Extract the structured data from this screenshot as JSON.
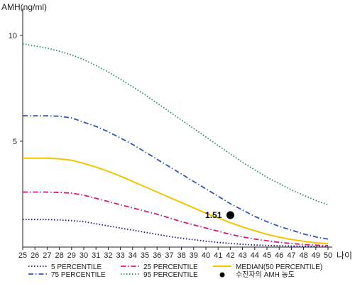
{
  "chart_data": {
    "type": "line",
    "ylabel": "AMH(ng/ml)",
    "xlabel": "나이",
    "x": [
      25,
      26,
      27,
      28,
      29,
      30,
      31,
      32,
      33,
      34,
      35,
      36,
      37,
      38,
      39,
      40,
      41,
      42,
      43,
      44,
      45,
      46,
      47,
      48,
      49,
      50
    ],
    "x_tick_labels": [
      "25",
      "26",
      "27",
      "28",
      "29",
      "30",
      "31",
      "32",
      "33",
      "34",
      "35",
      "36",
      "37",
      "38",
      "39",
      "40",
      "41",
      "42",
      "43",
      "44",
      "45",
      "46",
      "47",
      "48",
      "49",
      "50"
    ],
    "y_ticks": [
      5,
      10
    ],
    "ylim": [
      0,
      11
    ],
    "xlim": [
      25,
      50
    ],
    "grid": false,
    "legend_position": "bottom",
    "series": [
      {
        "name": "5 PERCENTILE",
        "color": "#1a1a6e",
        "style": "dotted",
        "values": [
          1.3,
          1.3,
          1.3,
          1.28,
          1.25,
          1.2,
          1.1,
          1.0,
          0.9,
          0.8,
          0.7,
          0.6,
          0.5,
          0.42,
          0.35,
          0.28,
          0.22,
          0.17,
          0.13,
          0.1,
          0.08,
          0.06,
          0.05,
          0.04,
          0.03,
          0.03
        ]
      },
      {
        "name": "25 PERCENTILE",
        "color": "#e0147c",
        "style": "dashdot",
        "values": [
          2.6,
          2.6,
          2.6,
          2.58,
          2.55,
          2.45,
          2.3,
          2.15,
          2.0,
          1.85,
          1.7,
          1.55,
          1.38,
          1.2,
          1.05,
          0.9,
          0.75,
          0.6,
          0.48,
          0.38,
          0.3,
          0.22,
          0.17,
          0.12,
          0.09,
          0.07
        ]
      },
      {
        "name": "MEDIAN(50 PERCENTILE)",
        "color": "#f2c500",
        "style": "solid",
        "values": [
          4.2,
          4.2,
          4.2,
          4.17,
          4.1,
          3.95,
          3.78,
          3.58,
          3.35,
          3.1,
          2.85,
          2.6,
          2.35,
          2.1,
          1.85,
          1.6,
          1.38,
          1.15,
          0.95,
          0.77,
          0.6,
          0.47,
          0.36,
          0.27,
          0.2,
          0.16
        ]
      },
      {
        "name": "75 PERCENTILE",
        "color": "#3355bb",
        "style": "dashdot",
        "values": [
          6.2,
          6.2,
          6.2,
          6.18,
          6.1,
          5.9,
          5.7,
          5.45,
          5.15,
          4.85,
          4.5,
          4.15,
          3.8,
          3.45,
          3.1,
          2.75,
          2.4,
          2.05,
          1.75,
          1.45,
          1.2,
          0.98,
          0.8,
          0.62,
          0.48,
          0.38
        ]
      },
      {
        "name": "95 PERCENTILE",
        "color": "#2e8b57",
        "style": "dotted",
        "values": [
          9.6,
          9.5,
          9.4,
          9.25,
          9.08,
          8.85,
          8.58,
          8.27,
          7.93,
          7.57,
          7.2,
          6.8,
          6.4,
          6.0,
          5.6,
          5.2,
          4.8,
          4.4,
          4.0,
          3.65,
          3.3,
          3.0,
          2.7,
          2.45,
          2.2,
          2.0
        ]
      }
    ],
    "marker": {
      "name": "수진자의 AMH 농도",
      "x": 42,
      "y": 1.51,
      "label": "1.51",
      "color": "#000000"
    }
  }
}
